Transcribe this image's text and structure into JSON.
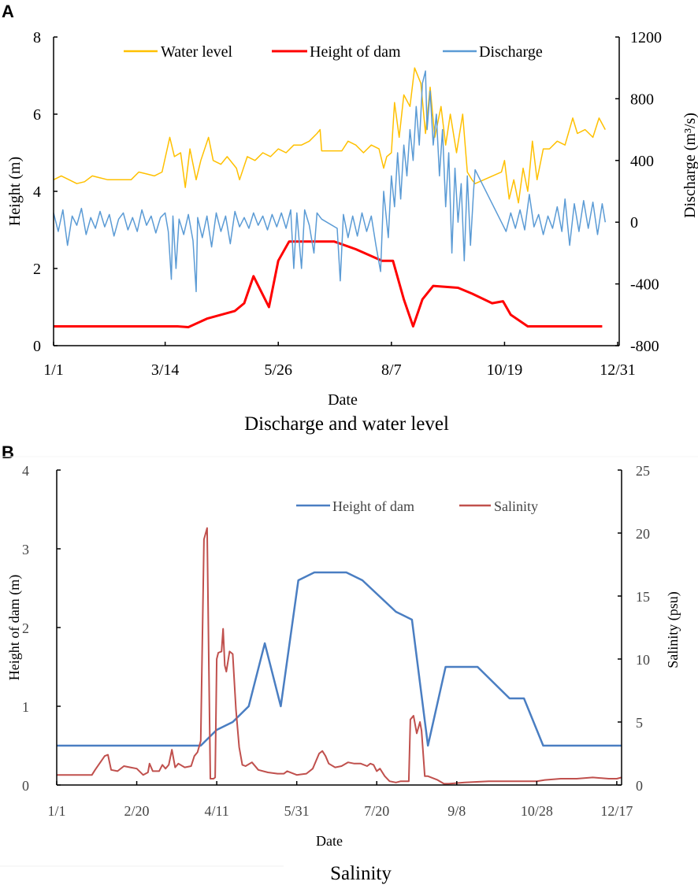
{
  "chart_data": [
    {
      "panel": "A",
      "type": "line",
      "title": "Discharge and water level",
      "xlabel": "Date",
      "ylabel": "Height (m)",
      "y2label": "Discharge (m³/s)",
      "x_unit": "day of year",
      "xlim": [
        0,
        365
      ],
      "ylim": [
        0,
        8
      ],
      "y2lim": [
        -800,
        1200
      ],
      "x_ticks": [
        {
          "day": 0,
          "label": "1/1"
        },
        {
          "day": 72,
          "label": "3/14"
        },
        {
          "day": 145,
          "label": "5/26"
        },
        {
          "day": 218,
          "label": "8/7"
        },
        {
          "day": 291,
          "label": "10/19"
        },
        {
          "day": 364,
          "label": "12/31"
        }
      ],
      "y_ticks": [
        "0",
        "2",
        "4",
        "6",
        "8"
      ],
      "y2_ticks": [
        "-800",
        "-400",
        "0",
        "400",
        "800",
        "1200"
      ],
      "legend_position": "top",
      "series": [
        {
          "name": "Water level",
          "color": "#FFC000",
          "axis": "left",
          "width": 1.5,
          "x": [
            0,
            5,
            10,
            15,
            20,
            25,
            30,
            35,
            40,
            45,
            50,
            55,
            60,
            65,
            70,
            75,
            78,
            82,
            85,
            88,
            92,
            95,
            100,
            103,
            108,
            112,
            118,
            120,
            125,
            130,
            135,
            140,
            145,
            150,
            155,
            160,
            165,
            170,
            172,
            173,
            180,
            186,
            190,
            195,
            200,
            205,
            210,
            213,
            215,
            218,
            220,
            223,
            226,
            230,
            233,
            237,
            240,
            243,
            246,
            250,
            253,
            256,
            260,
            264,
            267,
            270,
            272,
            289,
            291,
            294,
            297,
            300,
            303,
            306,
            309,
            312,
            316,
            320,
            325,
            330,
            335,
            338,
            343,
            348,
            352,
            356
          ],
          "y": [
            4.3,
            4.4,
            4.3,
            4.2,
            4.25,
            4.4,
            4.35,
            4.3,
            4.3,
            4.3,
            4.3,
            4.5,
            4.45,
            4.4,
            4.5,
            5.4,
            4.9,
            5.0,
            4.1,
            5.1,
            4.3,
            4.8,
            5.4,
            4.8,
            4.7,
            4.9,
            4.6,
            4.3,
            4.9,
            4.8,
            5.0,
            4.9,
            5.1,
            5.0,
            5.2,
            5.2,
            5.3,
            5.5,
            5.6,
            5.05,
            5.05,
            5.05,
            5.3,
            5.2,
            5.0,
            5.2,
            5.1,
            4.6,
            4.9,
            5.0,
            6.3,
            5.4,
            6.5,
            6.2,
            7.2,
            6.8,
            5.5,
            6.7,
            5.4,
            6.2,
            5.2,
            6.0,
            5.0,
            6.0,
            4.5,
            4.3,
            4.2,
            4.5,
            4.8,
            3.8,
            4.3,
            3.7,
            4.6,
            4.0,
            5.3,
            4.3,
            5.1,
            5.1,
            5.3,
            5.2,
            5.9,
            5.5,
            5.6,
            5.4,
            5.9,
            5.6
          ]
        },
        {
          "name": "Height of dam",
          "color": "#FF0000",
          "axis": "left",
          "width": 3,
          "x": [
            0,
            80,
            87,
            99,
            117,
            123,
            129,
            134,
            139,
            145,
            152,
            160,
            181,
            195,
            212,
            219,
            226,
            232,
            238,
            245,
            261,
            270,
            283,
            290,
            295,
            306,
            310,
            354
          ],
          "y": [
            0.5,
            0.5,
            0.48,
            0.7,
            0.9,
            1.1,
            1.8,
            1.4,
            1.0,
            2.2,
            2.7,
            2.7,
            2.7,
            2.5,
            2.2,
            2.2,
            1.2,
            0.5,
            1.2,
            1.55,
            1.5,
            1.35,
            1.1,
            1.15,
            0.8,
            0.5,
            0.5,
            0.5
          ]
        },
        {
          "name": "Discharge",
          "color": "#5B9BD5",
          "axis": "right",
          "width": 1.5,
          "x": [
            0,
            3,
            6,
            9,
            12,
            15,
            18,
            21,
            24,
            27,
            30,
            33,
            36,
            39,
            42,
            45,
            48,
            51,
            54,
            57,
            60,
            63,
            66,
            69,
            72,
            74,
            76,
            77,
            79,
            81,
            84,
            87,
            90,
            92,
            93,
            96,
            99,
            102,
            105,
            108,
            111,
            114,
            117,
            120,
            123,
            126,
            129,
            132,
            135,
            138,
            141,
            144,
            147,
            150,
            153,
            155,
            157,
            160,
            162,
            165,
            168,
            170,
            173,
            183,
            185,
            187,
            190,
            193,
            196,
            199,
            202,
            205,
            208,
            211,
            213,
            216,
            218,
            220,
            222,
            224,
            226,
            228,
            230,
            232,
            234,
            236,
            238,
            240,
            241,
            243,
            245,
            247,
            249,
            251,
            253,
            255,
            257,
            259,
            261,
            263,
            265,
            267,
            269,
            271,
            272,
            289,
            292,
            295,
            298,
            301,
            304,
            307,
            310,
            313,
            316,
            319,
            322,
            325,
            328,
            330,
            333,
            336,
            339,
            342,
            345,
            348,
            351,
            354,
            356
          ],
          "y": [
            60,
            -60,
            80,
            -150,
            40,
            -20,
            90,
            -80,
            30,
            -40,
            70,
            -30,
            50,
            -90,
            20,
            60,
            -50,
            30,
            -60,
            80,
            -20,
            40,
            -70,
            30,
            60,
            -60,
            -370,
            40,
            -300,
            20,
            -80,
            50,
            -120,
            -450,
            30,
            -100,
            40,
            -160,
            60,
            -60,
            40,
            -140,
            70,
            -30,
            30,
            -40,
            60,
            -20,
            40,
            -50,
            50,
            -30,
            60,
            -40,
            80,
            -300,
            60,
            -300,
            80,
            -20,
            -200,
            60,
            20,
            -40,
            -380,
            50,
            -100,
            40,
            -90,
            60,
            -60,
            40,
            -150,
            -320,
            200,
            -100,
            300,
            100,
            450,
            150,
            500,
            300,
            600,
            400,
            750,
            500,
            900,
            980,
            600,
            850,
            500,
            700,
            300,
            600,
            100,
            450,
            -200,
            350,
            0,
            250,
            -250,
            300,
            -150,
            200,
            340,
            0,
            -60,
            60,
            -40,
            80,
            -50,
            180,
            -30,
            50,
            -80,
            40,
            -40,
            100,
            -60,
            150,
            -150,
            120,
            -60,
            140,
            -40,
            130,
            -80,
            120,
            0
          ]
        }
      ]
    },
    {
      "panel": "B",
      "type": "line",
      "title": "Salinity",
      "xlabel": "Date",
      "ylabel": "Height of dam  (m)",
      "y2label": "Salinity (psu)",
      "x_unit": "day of year",
      "xlim": [
        0,
        353
      ],
      "ylim": [
        0,
        4
      ],
      "y2lim": [
        0,
        25
      ],
      "x_ticks": [
        {
          "day": 0,
          "label": "1/1"
        },
        {
          "day": 50,
          "label": "2/20"
        },
        {
          "day": 100,
          "label": "4/11"
        },
        {
          "day": 150,
          "label": "5/31"
        },
        {
          "day": 200,
          "label": "7/20"
        },
        {
          "day": 250,
          "label": "9/8"
        },
        {
          "day": 300,
          "label": "10/28"
        },
        {
          "day": 350,
          "label": "12/17"
        }
      ],
      "y_ticks": [
        "0",
        "1",
        "2",
        "3",
        "4"
      ],
      "y2_ticks": [
        "0",
        "5",
        "10",
        "15",
        "20",
        "25"
      ],
      "legend_position": "top-right",
      "series": [
        {
          "name": "Height of dam",
          "color": "#4A7EC2",
          "axis": "left",
          "width": 2.5,
          "x": [
            0,
            90,
            100,
            110,
            120,
            130,
            140,
            151,
            161,
            181,
            191,
            212,
            222,
            232,
            243,
            263,
            283,
            292,
            304,
            353
          ],
          "y": [
            0.5,
            0.5,
            0.7,
            0.8,
            1.0,
            1.8,
            1.0,
            2.6,
            2.7,
            2.7,
            2.6,
            2.2,
            2.1,
            0.5,
            1.5,
            1.5,
            1.1,
            1.1,
            0.5,
            0.5
          ]
        },
        {
          "name": "Salinity",
          "color": "#C0504D",
          "axis": "right",
          "width": 2,
          "x": [
            0,
            22,
            24,
            30,
            32,
            34,
            38,
            42,
            46,
            50,
            54,
            57,
            58,
            60,
            64,
            66,
            68,
            70,
            72,
            74,
            76,
            80,
            84,
            86,
            88,
            90,
            92,
            94,
            95,
            96,
            98,
            99,
            100,
            101,
            103,
            104,
            105,
            106,
            108,
            110,
            112,
            114,
            116,
            118,
            122,
            126,
            132,
            138,
            142,
            144,
            150,
            156,
            160,
            164,
            166,
            168,
            170,
            174,
            178,
            182,
            186,
            190,
            194,
            196,
            198,
            200,
            202,
            205,
            208,
            212,
            215,
            220,
            221,
            223,
            225,
            227,
            228,
            230,
            232,
            238,
            242,
            245,
            255,
            270,
            290,
            300,
            305,
            315,
            325,
            335,
            345,
            350,
            353
          ],
          "y": [
            0.8,
            0.8,
            1.2,
            2.3,
            2.4,
            1.2,
            1.1,
            1.5,
            1.4,
            1.3,
            0.8,
            1.0,
            1.7,
            1.1,
            1.1,
            1.6,
            1.3,
            1.6,
            2.8,
            1.4,
            1.7,
            1.4,
            1.5,
            2.3,
            2.6,
            3.5,
            19.5,
            20.4,
            10,
            0.5,
            0.5,
            0.6,
            10,
            10.5,
            10.6,
            12.4,
            9.5,
            9,
            10.6,
            10.4,
            6,
            3,
            1.6,
            1.5,
            1.8,
            1.2,
            1.0,
            0.9,
            0.9,
            1.1,
            0.8,
            0.9,
            1.3,
            2.5,
            2.7,
            2.3,
            1.7,
            1.4,
            1.5,
            1.8,
            1.7,
            1.7,
            1.5,
            1.7,
            1.6,
            1.1,
            1.3,
            0.7,
            0.3,
            0.2,
            0.3,
            0.3,
            5.2,
            5.5,
            4.1,
            5.0,
            4.3,
            0.7,
            0.7,
            0.4,
            0.1,
            0.1,
            0.2,
            0.3,
            0.3,
            0.3,
            0.4,
            0.5,
            0.5,
            0.6,
            0.5,
            0.5,
            0.6
          ]
        }
      ]
    }
  ],
  "panel_labels": [
    "A",
    "B"
  ]
}
